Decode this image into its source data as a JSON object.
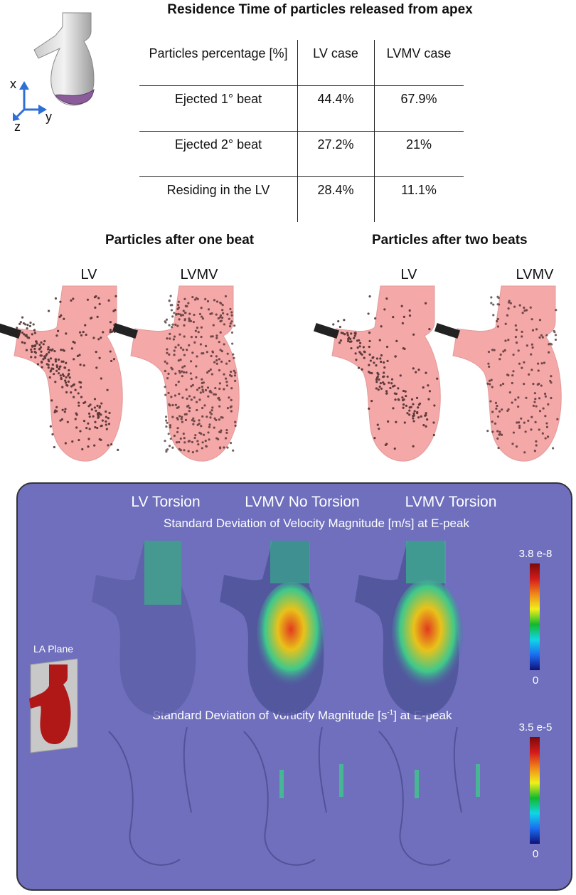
{
  "header": {
    "title": "Residence Time of particles released from apex"
  },
  "axes": {
    "x": "x",
    "y": "y",
    "z": "z"
  },
  "table": {
    "columns": [
      "Particles percentage [%]",
      "LV case",
      "LVMV case"
    ],
    "rows": [
      {
        "label": "Ejected 1° beat",
        "lv": "44.4%",
        "lvmv": "67.9%"
      },
      {
        "label": "Ejected 2° beat",
        "lv": "27.2%",
        "lvmv": "21%"
      },
      {
        "label": "Residing in the LV",
        "lv": "28.4%",
        "lvmv": "11.1%"
      }
    ]
  },
  "particles": {
    "one_beat_title": "Particles after one beat",
    "two_beats_title": "Particles after two beats",
    "lv_label": "LV",
    "lvmv_label": "LVMV"
  },
  "panel": {
    "col1": "LV Torsion",
    "col2": "LVMV No Torsion",
    "col3": "LVMV Torsion",
    "velocity_title": "Standard Deviation of Velocity Magnitude [m/s] at E-peak",
    "vorticity_title_pre": "Standard Deviation of Vorticity Magnitude [s",
    "vorticity_title_sup": "-1",
    "vorticity_title_post": "] at E-peak",
    "la_plane": "LA Plane",
    "vel_max": "3.8 e-8",
    "vel_min": "0",
    "vort_max": "3.5 e-5",
    "vort_min": "0"
  },
  "colors": {
    "panel_bg": "#6f6fbd",
    "heart_fill": "#f4a8a8",
    "particle": "#3a2020",
    "la_red": "#b01818",
    "axis_blue": "#2e6fd6"
  }
}
